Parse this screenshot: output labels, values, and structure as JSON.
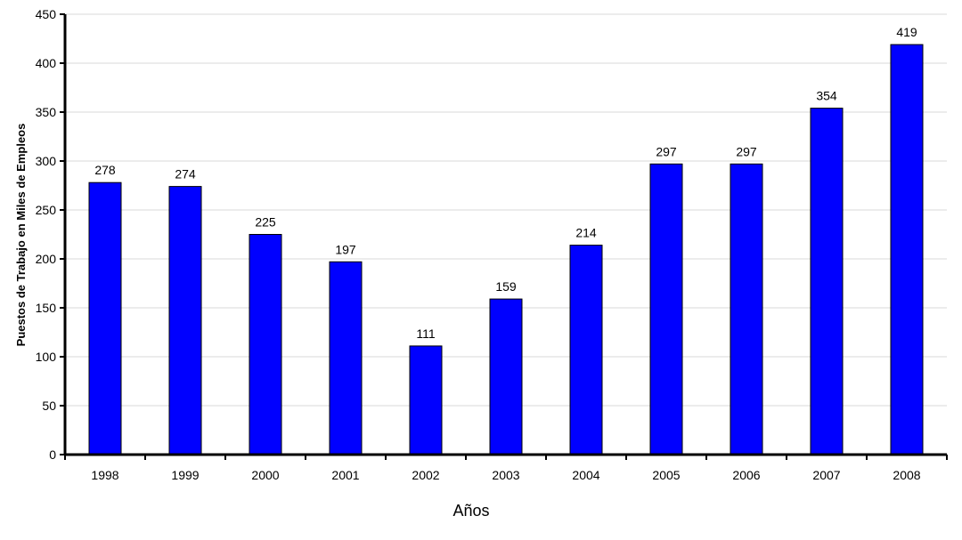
{
  "chart_data": {
    "type": "bar",
    "title": "",
    "xlabel": "Años",
    "ylabel": "Puestos de Trabajo en Miles de Empleos",
    "categories": [
      "1998",
      "1999",
      "2000",
      "2001",
      "2002",
      "2003",
      "2004",
      "2005",
      "2006",
      "2007",
      "2008"
    ],
    "values": [
      278,
      274,
      225,
      197,
      111,
      159,
      214,
      297,
      297,
      354,
      419
    ],
    "data_labels": [
      "278",
      "274",
      "225",
      "197",
      "111",
      "159",
      "214",
      "297",
      "297",
      "354",
      "419"
    ],
    "ylim": [
      0,
      450
    ],
    "y_ticks": [
      "0",
      "50",
      "100",
      "150",
      "200",
      "250",
      "300",
      "350",
      "400",
      "450"
    ],
    "grid": true,
    "legend": "none",
    "bar_color": "#0000ff",
    "grid_color": "#d9d9d9"
  }
}
